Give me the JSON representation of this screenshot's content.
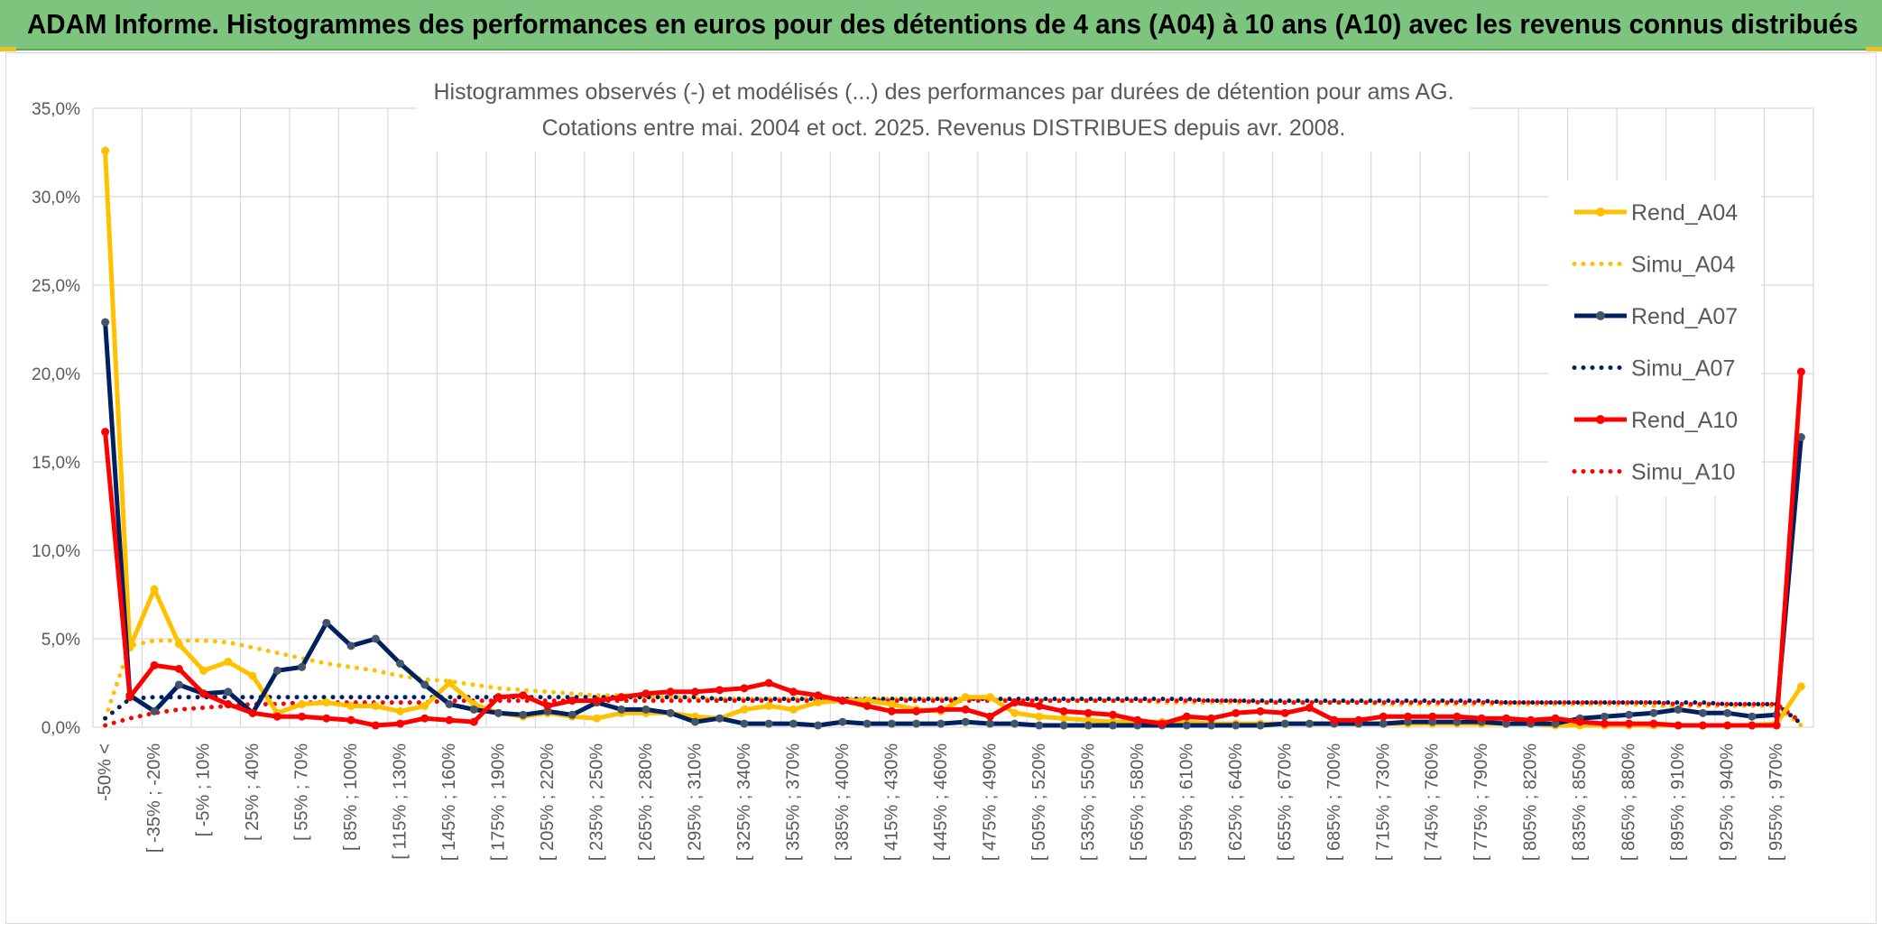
{
  "banner": {
    "title": "ADAM Informe. Histogrammes des performances en euros pour des détentions de 4 ans (A04) à 10 ans (A10) avec les revenus connus distribués"
  },
  "colors": {
    "banner_bg": "#7dc57e",
    "A04": "#ffc000",
    "A07": "#002060",
    "A10": "#ff0000",
    "marker_A07": "#44546a",
    "grid": "#d9d9d9"
  },
  "chart_data": {
    "type": "line",
    "title": "Histogrammes observés (-) et modélisés (...) des performances par durées de détention pour ams AG.",
    "subtitle": "Cotations entre mai. 2004 et oct. 2025. Revenus DISTRIBUES depuis avr. 2008.",
    "xlabel": "",
    "ylabel": "",
    "ylim": [
      0,
      35
    ],
    "y_ticks": [
      "0,0%",
      "5,0%",
      "10,0%",
      "15,0%",
      "20,0%",
      "25,0%",
      "30,0%",
      "35,0%"
    ],
    "grid": true,
    "legend_position": "right",
    "x_tick_labels": [
      "-50% <",
      "[ -35% ; -20%",
      "[ -5% ; 10%",
      "[ 25% ; 40%",
      "[ 55% ; 70%",
      "[ 85% ; 100%",
      "[ 115% ; 130%",
      "[ 145% ; 160%",
      "[ 175% ; 190%",
      "[ 205% ; 220%",
      "[ 235% ; 250%",
      "[ 265% ; 280%",
      "[ 295% ; 310%",
      "[ 325% ; 340%",
      "[ 355% ; 370%",
      "[ 385% ; 400%",
      "[ 415% ; 430%",
      "[ 445% ; 460%",
      "[ 475% ; 490%",
      "[ 505% ; 520%",
      "[ 535% ; 550%",
      "[ 565% ; 580%",
      "[ 595% ; 610%",
      "[ 625% ; 640%",
      "[ 655% ; 670%",
      "[ 685% ; 700%",
      "[ 715% ; 730%",
      "[ 745% ; 760%",
      "[ 775% ; 790%",
      "[ 805% ; 820%",
      "[ 835% ; 850%",
      "[ 865% ; 880%",
      "[ 895% ; 910%",
      "[ 925% ; 940%",
      "[ 955% ; 970%"
    ],
    "n_categories": 70,
    "series": [
      {
        "name": "Rend_A04",
        "style": "solid",
        "markers": true,
        "values": [
          32.6,
          4.5,
          7.8,
          4.7,
          3.2,
          3.7,
          2.9,
          0.8,
          1.3,
          1.4,
          1.2,
          1.2,
          0.9,
          1.2,
          2.5,
          1.3,
          0.8,
          0.6,
          0.8,
          0.6,
          0.5,
          0.8,
          0.8,
          0.8,
          0.6,
          0.5,
          1.0,
          1.2,
          1.0,
          1.4,
          1.5,
          1.5,
          1.3,
          1.0,
          0.9,
          1.7,
          1.7,
          0.8,
          0.6,
          0.5,
          0.4,
          0.3,
          0.3,
          0.3,
          0.3,
          0.2,
          0.2,
          0.2,
          0.2,
          0.2,
          0.2,
          0.2,
          0.2,
          0.2,
          0.2,
          0.2,
          0.2,
          0.2,
          0.2,
          0.1,
          0.1,
          0.1,
          0.1,
          0.1,
          0.1,
          0.1,
          0.1,
          0.1,
          0.2,
          2.3
        ]
      },
      {
        "name": "Simu_A04",
        "style": "dotted",
        "markers": false,
        "values": [
          0.5,
          4.6,
          4.9,
          4.9,
          4.9,
          4.8,
          4.5,
          4.2,
          3.9,
          3.6,
          3.4,
          3.2,
          2.9,
          2.7,
          2.6,
          2.4,
          2.2,
          2.1,
          2.0,
          1.9,
          1.8,
          1.8,
          1.7,
          1.7,
          1.6,
          1.6,
          1.6,
          1.6,
          1.6,
          1.6,
          1.6,
          1.6,
          1.6,
          1.6,
          1.6,
          1.6,
          1.6,
          1.5,
          1.5,
          1.5,
          1.5,
          1.5,
          1.5,
          1.4,
          1.4,
          1.4,
          1.4,
          1.4,
          1.4,
          1.4,
          1.4,
          1.4,
          1.3,
          1.3,
          1.3,
          1.3,
          1.3,
          1.3,
          1.3,
          1.3,
          1.3,
          1.3,
          1.3,
          1.2,
          1.2,
          1.2,
          1.2,
          1.2,
          1.2,
          0.1
        ]
      },
      {
        "name": "Rend_A07",
        "style": "solid",
        "markers": true,
        "values": [
          22.9,
          1.8,
          0.9,
          2.4,
          1.9,
          2.0,
          0.8,
          3.2,
          3.4,
          5.9,
          4.6,
          5.0,
          3.6,
          2.4,
          1.3,
          1.0,
          0.8,
          0.7,
          0.9,
          0.7,
          1.4,
          1.0,
          1.0,
          0.8,
          0.3,
          0.5,
          0.2,
          0.2,
          0.2,
          0.1,
          0.3,
          0.2,
          0.2,
          0.2,
          0.2,
          0.3,
          0.2,
          0.2,
          0.1,
          0.1,
          0.1,
          0.1,
          0.1,
          0.1,
          0.1,
          0.1,
          0.1,
          0.1,
          0.2,
          0.2,
          0.2,
          0.2,
          0.2,
          0.3,
          0.3,
          0.3,
          0.3,
          0.2,
          0.2,
          0.2,
          0.5,
          0.6,
          0.7,
          0.8,
          1.0,
          0.8,
          0.8,
          0.6,
          0.7,
          16.4
        ]
      },
      {
        "name": "Simu_A07",
        "style": "dotted",
        "markers": false,
        "values": [
          0.5,
          1.6,
          1.7,
          1.7,
          1.7,
          1.7,
          1.7,
          1.7,
          1.7,
          1.7,
          1.7,
          1.7,
          1.7,
          1.7,
          1.7,
          1.7,
          1.7,
          1.7,
          1.7,
          1.7,
          1.7,
          1.7,
          1.7,
          1.7,
          1.7,
          1.6,
          1.6,
          1.6,
          1.6,
          1.6,
          1.6,
          1.6,
          1.6,
          1.6,
          1.6,
          1.6,
          1.6,
          1.6,
          1.6,
          1.6,
          1.6,
          1.6,
          1.6,
          1.6,
          1.6,
          1.5,
          1.5,
          1.5,
          1.5,
          1.5,
          1.5,
          1.5,
          1.5,
          1.5,
          1.5,
          1.5,
          1.5,
          1.4,
          1.4,
          1.4,
          1.4,
          1.4,
          1.4,
          1.4,
          1.4,
          1.4,
          1.3,
          1.3,
          1.3,
          0.2
        ]
      },
      {
        "name": "Rend_A10",
        "style": "solid",
        "markers": true,
        "values": [
          16.7,
          1.7,
          3.5,
          3.3,
          1.9,
          1.3,
          0.8,
          0.6,
          0.6,
          0.5,
          0.4,
          0.1,
          0.2,
          0.5,
          0.4,
          0.3,
          1.7,
          1.8,
          1.2,
          1.5,
          1.5,
          1.7,
          1.9,
          2.0,
          2.0,
          2.1,
          2.2,
          2.5,
          2.0,
          1.8,
          1.5,
          1.2,
          0.9,
          0.9,
          1.0,
          1.0,
          0.6,
          1.4,
          1.2,
          0.9,
          0.8,
          0.7,
          0.4,
          0.2,
          0.6,
          0.5,
          0.8,
          0.9,
          0.8,
          1.1,
          0.4,
          0.4,
          0.6,
          0.6,
          0.6,
          0.6,
          0.5,
          0.5,
          0.4,
          0.5,
          0.3,
          0.2,
          0.2,
          0.2,
          0.1,
          0.1,
          0.1,
          0.1,
          0.1,
          20.1
        ]
      },
      {
        "name": "Simu_A10",
        "style": "dotted",
        "markers": false,
        "values": [
          0.1,
          0.5,
          0.8,
          1.0,
          1.1,
          1.2,
          1.3,
          1.3,
          1.4,
          1.4,
          1.4,
          1.4,
          1.4,
          1.4,
          1.5,
          1.5,
          1.5,
          1.5,
          1.5,
          1.5,
          1.5,
          1.5,
          1.5,
          1.5,
          1.5,
          1.5,
          1.5,
          1.5,
          1.5,
          1.5,
          1.5,
          1.5,
          1.5,
          1.5,
          1.5,
          1.5,
          1.5,
          1.5,
          1.5,
          1.5,
          1.5,
          1.5,
          1.5,
          1.5,
          1.5,
          1.5,
          1.5,
          1.4,
          1.4,
          1.4,
          1.4,
          1.4,
          1.4,
          1.4,
          1.4,
          1.4,
          1.4,
          1.4,
          1.4,
          1.4,
          1.4,
          1.4,
          1.4,
          1.4,
          1.3,
          1.3,
          1.3,
          1.3,
          1.3,
          0.3
        ]
      }
    ]
  }
}
